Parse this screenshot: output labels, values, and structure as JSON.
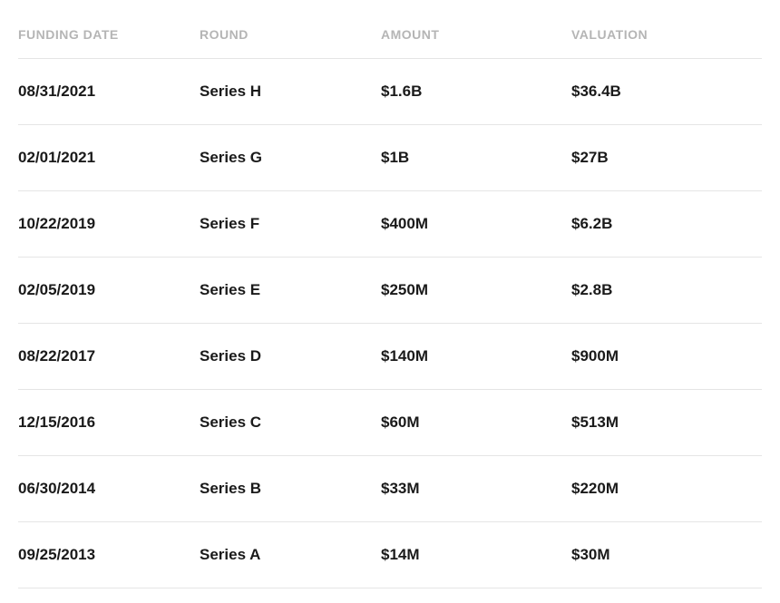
{
  "table": {
    "columns": [
      {
        "key": "funding_date",
        "label": "FUNDING DATE",
        "class": "col-date"
      },
      {
        "key": "round",
        "label": "ROUND",
        "class": "col-round"
      },
      {
        "key": "amount",
        "label": "AMOUNT",
        "class": "col-amount"
      },
      {
        "key": "valuation",
        "label": "VALUATION",
        "class": "col-valuation"
      }
    ],
    "rows": [
      {
        "funding_date": "08/31/2021",
        "round": "Series H",
        "amount": "$1.6B",
        "valuation": "$36.4B"
      },
      {
        "funding_date": "02/01/2021",
        "round": "Series G",
        "amount": "$1B",
        "valuation": "$27B"
      },
      {
        "funding_date": "10/22/2019",
        "round": "Series F",
        "amount": "$400M",
        "valuation": "$6.2B"
      },
      {
        "funding_date": "02/05/2019",
        "round": "Series E",
        "amount": "$250M",
        "valuation": "$2.8B"
      },
      {
        "funding_date": "08/22/2017",
        "round": "Series D",
        "amount": "$140M",
        "valuation": "$900M"
      },
      {
        "funding_date": "12/15/2016",
        "round": "Series C",
        "amount": "$60M",
        "valuation": "$513M"
      },
      {
        "funding_date": "06/30/2014",
        "round": "Series B",
        "amount": "$33M",
        "valuation": "$220M"
      },
      {
        "funding_date": "09/25/2013",
        "round": "Series A",
        "amount": "$14M",
        "valuation": "$30M"
      }
    ],
    "styling": {
      "header_color": "#b5b5b5",
      "header_fontsize": 14,
      "header_fontweight": 700,
      "cell_color": "#1a1a1a",
      "cell_fontsize": 17,
      "cell_fontweight": 700,
      "border_color": "#e5e5e5",
      "background_color": "#ffffff",
      "row_padding_vertical": 26
    }
  }
}
